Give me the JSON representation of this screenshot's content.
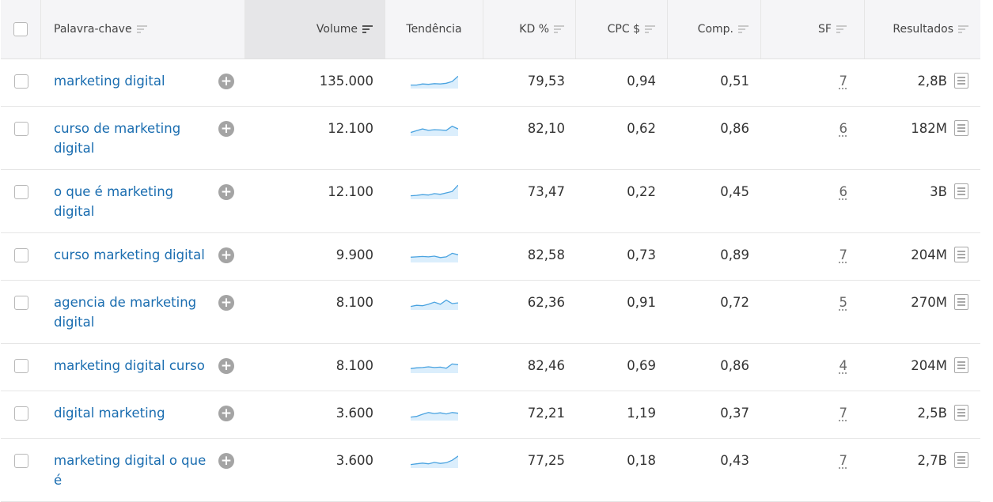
{
  "columns": {
    "keyword": "Palavra-chave",
    "volume": "Volume",
    "trend": "Tendência",
    "kd": "KD %",
    "cpc": "CPC $",
    "comp": "Comp.",
    "sf": "SF",
    "results": "Resultados"
  },
  "rows": [
    {
      "keyword": "marketing digital",
      "volume": "135.000",
      "kd": "79,53",
      "cpc": "0,94",
      "comp": "0,51",
      "sf": "7",
      "results": "2,8B",
      "trend": [
        3,
        3,
        3.3,
        3.2,
        3.4,
        3.3,
        3.5,
        4,
        5.5
      ]
    },
    {
      "keyword": "curso de marketing digital",
      "volume": "12.100",
      "kd": "82,10",
      "cpc": "0,62",
      "comp": "0,86",
      "sf": "6",
      "results": "182M",
      "trend": [
        3,
        3.5,
        4,
        3.6,
        3.8,
        3.7,
        3.6,
        4.8,
        4
      ]
    },
    {
      "keyword": "o que é marketing digital",
      "volume": "12.100",
      "kd": "73,47",
      "cpc": "0,22",
      "comp": "0,45",
      "sf": "6",
      "results": "3B",
      "trend": [
        3,
        3.1,
        3.3,
        3.2,
        3.6,
        3.4,
        3.8,
        4.2,
        6
      ]
    },
    {
      "keyword": "curso marketing digital",
      "volume": "9.900",
      "kd": "82,58",
      "cpc": "0,73",
      "comp": "0,89",
      "sf": "7",
      "results": "204M",
      "trend": [
        3.5,
        3.6,
        3.7,
        3.6,
        3.8,
        3.4,
        3.6,
        4.6,
        4.2
      ]
    },
    {
      "keyword": "agencia de marketing digital",
      "volume": "8.100",
      "kd": "62,36",
      "cpc": "0,91",
      "comp": "0,72",
      "sf": "5",
      "results": "270M",
      "trend": [
        3,
        3.3,
        3.2,
        3.6,
        4.2,
        3.6,
        4.8,
        3.8,
        4
      ]
    },
    {
      "keyword": "marketing digital curso",
      "volume": "8.100",
      "kd": "82,46",
      "cpc": "0,69",
      "comp": "0,86",
      "sf": "4",
      "results": "204M",
      "trend": [
        3.3,
        3.5,
        3.6,
        3.8,
        3.6,
        3.7,
        3.4,
        4.6,
        4.4
      ]
    },
    {
      "keyword": "digital marketing",
      "volume": "3.600",
      "kd": "72,21",
      "cpc": "1,19",
      "comp": "0,37",
      "sf": "7",
      "results": "2,5B",
      "trend": [
        3,
        3.2,
        3.8,
        4.3,
        4,
        4.2,
        3.9,
        4.3,
        4.1
      ]
    },
    {
      "keyword": "marketing digital o que é",
      "volume": "3.600",
      "kd": "77,25",
      "cpc": "0,18",
      "comp": "0,43",
      "sf": "7",
      "results": "2,7B",
      "trend": [
        3,
        3.2,
        3.4,
        3.2,
        3.6,
        3.3,
        3.5,
        4.2,
        5.4
      ]
    }
  ],
  "colors": {
    "link": "#1a6db0",
    "trend_line": "#4aa3e0",
    "trend_fill": "#dbeefc"
  },
  "icons": {
    "add": "plus-circle-icon",
    "serp": "serp-page-icon",
    "sort": "sort-icon"
  }
}
